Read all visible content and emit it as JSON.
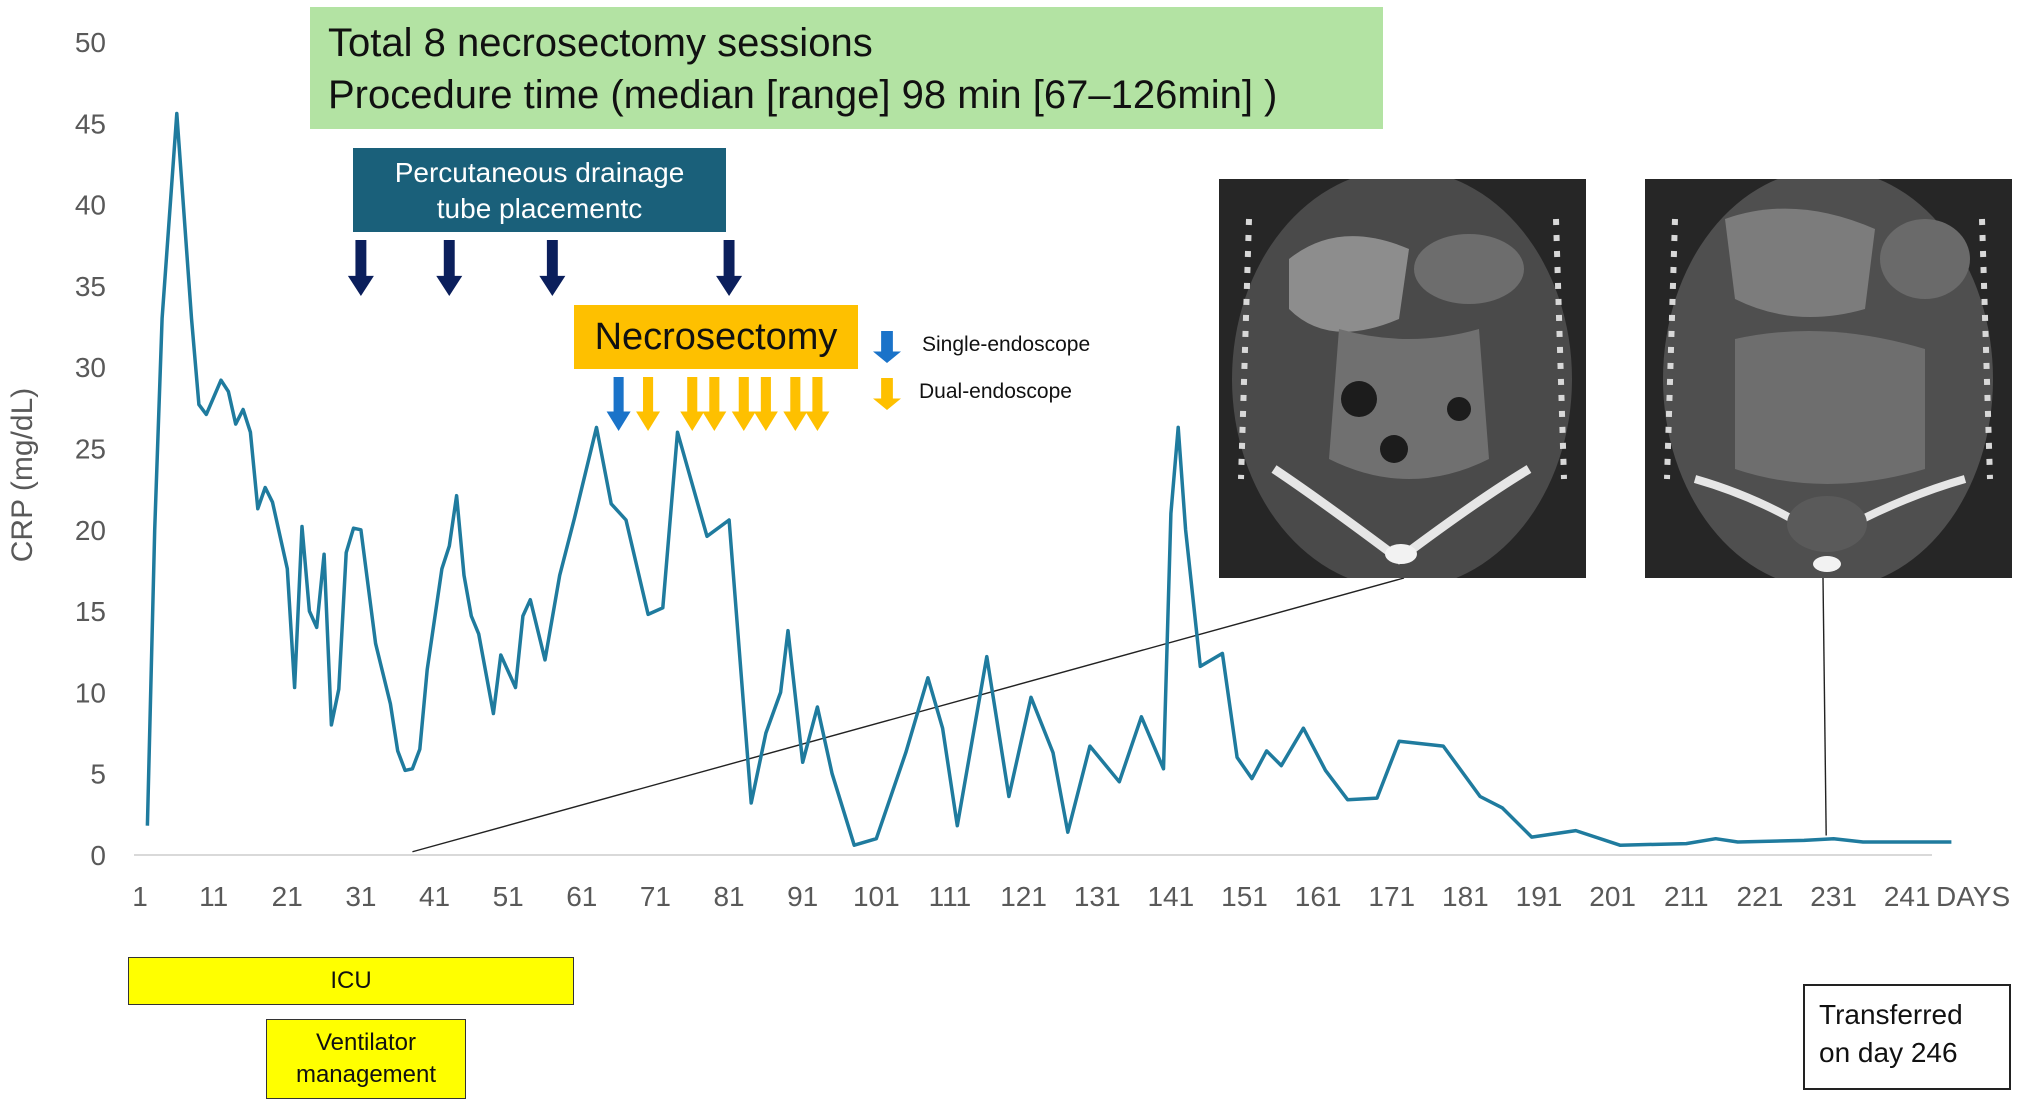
{
  "annotations": {
    "summary_line1": "Total 8 necrosectomy sessions",
    "summary_line2": "Procedure time (median [range] 98 min [67–126min] )",
    "drainage_line1": "Percutaneous drainage",
    "drainage_line2": "tube placementc",
    "necrosectomy": "Necrosectomy",
    "legend_single": "Single-endoscope",
    "legend_dual": "Dual-endoscope",
    "icu": "ICU",
    "ventilator_line1": "Ventilator",
    "ventilator_line2": "management",
    "transfer_line1": "Transferred",
    "transfer_line2": "on day 246"
  },
  "colors": {
    "line": "#1f7b9e",
    "drainage_arrow": "#0b1f5c",
    "single_arrow": "#1a73c9",
    "dual_arrow": "#fec000",
    "summary_bg": "#b3e3a3",
    "drainage_bg": "#1a607a",
    "necrosectomy_bg": "#fec000",
    "icu_bg": "#ffff00"
  },
  "icons": {
    "drainage": "down-arrow-icon",
    "single": "down-arrow-icon",
    "dual": "down-arrow-icon"
  },
  "events": {
    "drainage_days": [
      31,
      43,
      57,
      81
    ],
    "single_endoscope_days": [
      66
    ],
    "dual_endoscope_days": [
      70,
      76,
      79,
      83,
      86,
      90,
      93
    ]
  },
  "chart_data": {
    "type": "line",
    "ylabel": "CRP (mg/dL)",
    "xlabel": "DAYS",
    "xlim": [
      1,
      246
    ],
    "ylim": [
      0,
      50
    ],
    "x_ticks": [
      1,
      11,
      21,
      31,
      41,
      51,
      61,
      71,
      81,
      91,
      101,
      111,
      121,
      131,
      141,
      151,
      161,
      171,
      181,
      191,
      201,
      211,
      221,
      231,
      241
    ],
    "y_ticks": [
      0,
      5,
      10,
      15,
      20,
      25,
      30,
      35,
      40,
      45,
      50
    ],
    "grid": false,
    "series": [
      {
        "points": [
          [
            2,
            1.8
          ],
          [
            3,
            20
          ],
          [
            4,
            33
          ],
          [
            6,
            45.6
          ],
          [
            8,
            33
          ],
          [
            9,
            27.7
          ],
          [
            10,
            27.1
          ],
          [
            12,
            29.2
          ],
          [
            13,
            28.5
          ],
          [
            14,
            26.5
          ],
          [
            15,
            27.4
          ],
          [
            16,
            26
          ],
          [
            17,
            21.3
          ],
          [
            18,
            22.6
          ],
          [
            19,
            21.7
          ],
          [
            21,
            17.6
          ],
          [
            22,
            10.3
          ],
          [
            23,
            20.2
          ],
          [
            24,
            15
          ],
          [
            25,
            14
          ],
          [
            26,
            18.5
          ],
          [
            27,
            8
          ],
          [
            28,
            10.2
          ],
          [
            29,
            18.6
          ],
          [
            30,
            20.1
          ],
          [
            31,
            20
          ],
          [
            33,
            13
          ],
          [
            35,
            9.3
          ],
          [
            36,
            6.4
          ],
          [
            37,
            5.2
          ],
          [
            38,
            5.3
          ],
          [
            39,
            6.5
          ],
          [
            40,
            11.4
          ],
          [
            42,
            17.6
          ],
          [
            43,
            19
          ],
          [
            44,
            22.1
          ],
          [
            45,
            17.2
          ],
          [
            46,
            14.7
          ],
          [
            47,
            13.6
          ],
          [
            49,
            8.7
          ],
          [
            50,
            12.3
          ],
          [
            52,
            10.3
          ],
          [
            53,
            14.7
          ],
          [
            54,
            15.7
          ],
          [
            56,
            12
          ],
          [
            58,
            17.2
          ],
          [
            60,
            20.7
          ],
          [
            63,
            26.3
          ],
          [
            65,
            21.6
          ],
          [
            67,
            20.6
          ],
          [
            70,
            14.8
          ],
          [
            72,
            15.2
          ],
          [
            74,
            26
          ],
          [
            78,
            19.6
          ],
          [
            81,
            20.6
          ],
          [
            84,
            3.2
          ],
          [
            86,
            7.5
          ],
          [
            88,
            10
          ],
          [
            89,
            13.8
          ],
          [
            91,
            5.7
          ],
          [
            93,
            9.1
          ],
          [
            95,
            5
          ],
          [
            98,
            0.6
          ],
          [
            101,
            1
          ],
          [
            105,
            6.3
          ],
          [
            108,
            10.9
          ],
          [
            110,
            7.8
          ],
          [
            112,
            1.8
          ],
          [
            116,
            12.2
          ],
          [
            119,
            3.6
          ],
          [
            122,
            9.7
          ],
          [
            125,
            6.3
          ],
          [
            127,
            1.4
          ],
          [
            130,
            6.7
          ],
          [
            134,
            4.5
          ],
          [
            137,
            8.5
          ],
          [
            140,
            5.3
          ],
          [
            141,
            21
          ],
          [
            142,
            26.3
          ],
          [
            143,
            20
          ],
          [
            145,
            11.6
          ],
          [
            148,
            12.4
          ],
          [
            150,
            6
          ],
          [
            152,
            4.7
          ],
          [
            154,
            6.4
          ],
          [
            156,
            5.5
          ],
          [
            159,
            7.8
          ],
          [
            162,
            5.2
          ],
          [
            165,
            3.4
          ],
          [
            169,
            3.5
          ],
          [
            172,
            7
          ],
          [
            178,
            6.7
          ],
          [
            183,
            3.6
          ],
          [
            186,
            2.9
          ],
          [
            190,
            1.1
          ],
          [
            193,
            1.3
          ],
          [
            196,
            1.5
          ],
          [
            202,
            0.6
          ],
          [
            211,
            0.7
          ],
          [
            215,
            1
          ],
          [
            218,
            0.8
          ],
          [
            227,
            0.9
          ],
          [
            231,
            1
          ],
          [
            235,
            0.8
          ],
          [
            241,
            0.8
          ],
          [
            247,
            0.8
          ]
        ]
      }
    ],
    "callouts": [
      {
        "from": [
          38,
          0.2
        ],
        "to_image": "ct-image-1"
      },
      {
        "from": [
          230,
          1.2
        ],
        "to_image": "ct-image-2"
      }
    ]
  }
}
